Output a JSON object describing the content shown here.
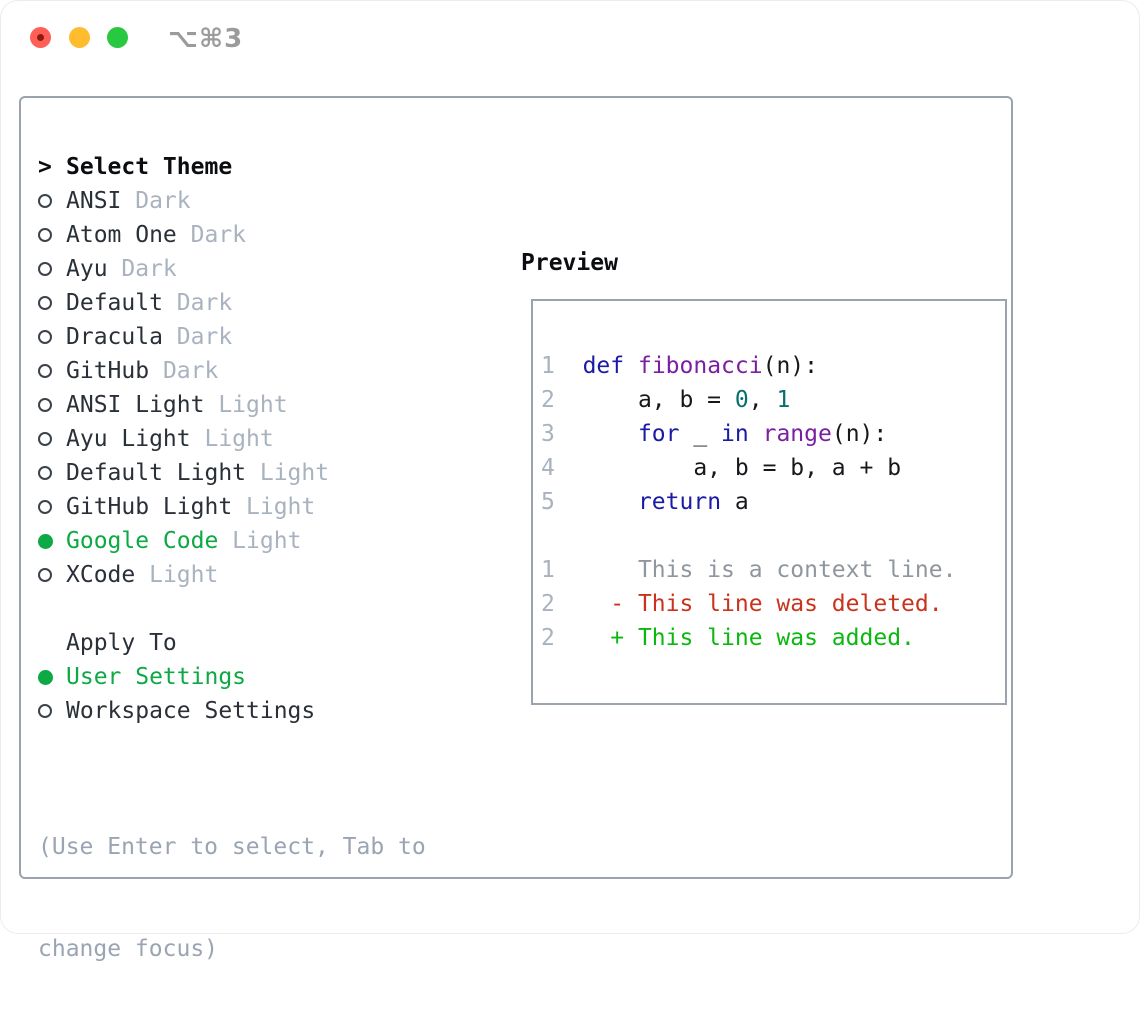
{
  "titlebar": {
    "title": "⌥⌘3"
  },
  "sidebar": {
    "header_prefix": ">",
    "header": "Select Theme",
    "themes": [
      {
        "name": "ANSI",
        "variant": "Dark",
        "selected": false
      },
      {
        "name": "Atom One",
        "variant": "Dark",
        "selected": false
      },
      {
        "name": "Ayu",
        "variant": "Dark",
        "selected": false
      },
      {
        "name": "Default",
        "variant": "Dark",
        "selected": false
      },
      {
        "name": "Dracula",
        "variant": "Dark",
        "selected": false
      },
      {
        "name": "GitHub",
        "variant": "Dark",
        "selected": false
      },
      {
        "name": "ANSI Light",
        "variant": "Light",
        "selected": false
      },
      {
        "name": "Ayu Light",
        "variant": "Light",
        "selected": false
      },
      {
        "name": "Default Light",
        "variant": "Light",
        "selected": false
      },
      {
        "name": "GitHub Light",
        "variant": "Light",
        "selected": false
      },
      {
        "name": "Google Code",
        "variant": "Light",
        "selected": true
      },
      {
        "name": "XCode",
        "variant": "Light",
        "selected": false
      }
    ],
    "apply_to": {
      "header": "Apply To",
      "options": [
        {
          "name": "User Settings",
          "selected": true
        },
        {
          "name": "Workspace Settings",
          "selected": false
        }
      ]
    },
    "hint_lines": [
      "(Use Enter to select, Tab to",
      "change focus)"
    ]
  },
  "preview": {
    "header": "Preview",
    "code_lines": [
      {
        "num": "1",
        "tokens": [
          {
            "t": "  ",
            "c": "pln"
          },
          {
            "t": "def",
            "c": "kwd"
          },
          {
            "t": " ",
            "c": "pln"
          },
          {
            "t": "fibonacci",
            "c": "fn"
          },
          {
            "t": "(n):",
            "c": "pln"
          }
        ]
      },
      {
        "num": "2",
        "tokens": [
          {
            "t": "      a, b = ",
            "c": "pln"
          },
          {
            "t": "0",
            "c": "num"
          },
          {
            "t": ", ",
            "c": "pln"
          },
          {
            "t": "1",
            "c": "num"
          }
        ]
      },
      {
        "num": "3",
        "tokens": [
          {
            "t": "      ",
            "c": "pln"
          },
          {
            "t": "for",
            "c": "kwd"
          },
          {
            "t": " _ ",
            "c": "pln"
          },
          {
            "t": "in",
            "c": "kwd"
          },
          {
            "t": " ",
            "c": "pln"
          },
          {
            "t": "range",
            "c": "fn"
          },
          {
            "t": "(n):",
            "c": "pln"
          }
        ]
      },
      {
        "num": "4",
        "tokens": [
          {
            "t": "          a, b = b, a + b",
            "c": "pln"
          }
        ]
      },
      {
        "num": "5",
        "tokens": [
          {
            "t": "      ",
            "c": "pln"
          },
          {
            "t": "return",
            "c": "kwd"
          },
          {
            "t": " a",
            "c": "pln"
          }
        ]
      }
    ],
    "diff_lines": [
      {
        "num": "1",
        "text": "      This is a context line.",
        "kind": "context"
      },
      {
        "num": "2",
        "text": "    - This line was deleted.",
        "kind": "deleted"
      },
      {
        "num": "2",
        "text": "    + This line was added.",
        "kind": "added"
      }
    ]
  },
  "colors": {
    "border": "#9aa3ae",
    "text": "#2a3038",
    "muted": "#a9b2bf",
    "hint": "#9aa4b2",
    "accent": "#0ca944",
    "kwd": "#1a1aa6",
    "fn": "#7b1fa2",
    "numlit": "#0a6e6e",
    "pln": "#16181c",
    "context": "#8f969e",
    "deleted": "#c9331d",
    "added": "#0ab80f"
  }
}
